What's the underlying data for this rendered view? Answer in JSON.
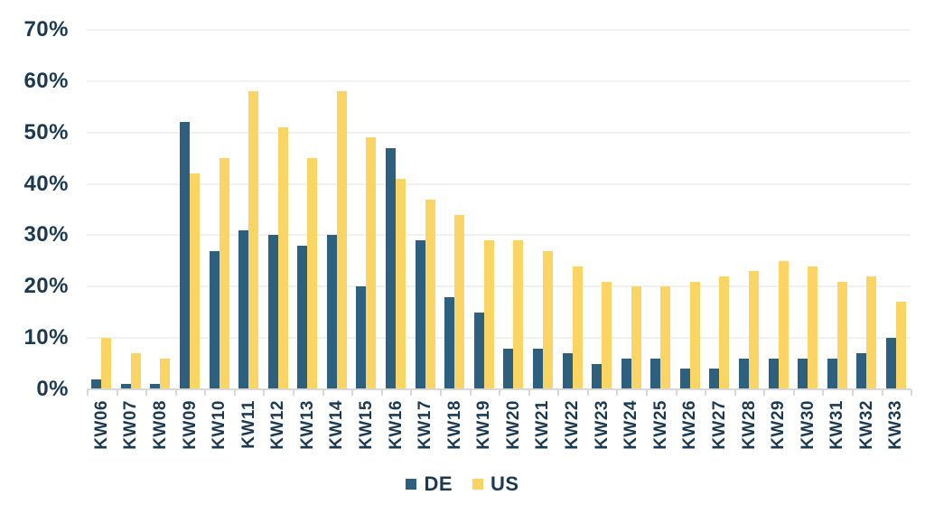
{
  "chart_data": {
    "type": "bar",
    "categories": [
      "KW06",
      "KW07",
      "KW08",
      "KW09",
      "KW10",
      "KW11",
      "KW12",
      "KW13",
      "KW14",
      "KW15",
      "KW16",
      "KW17",
      "KW18",
      "KW19",
      "KW20",
      "KW21",
      "KW22",
      "KW23",
      "KW24",
      "KW25",
      "KW26",
      "KW27",
      "KW28",
      "KW29",
      "KW30",
      "KW31",
      "KW32",
      "KW33"
    ],
    "series": [
      {
        "name": "DE",
        "color": "#2D5F7E",
        "values": [
          2,
          1,
          1,
          52,
          27,
          31,
          30,
          28,
          30,
          20,
          47,
          29,
          18,
          15,
          8,
          8,
          7,
          5,
          6,
          6,
          4,
          4,
          6,
          6,
          6,
          6,
          7,
          10
        ]
      },
      {
        "name": "US",
        "color": "#FBD564",
        "values": [
          10,
          7,
          6,
          42,
          45,
          58,
          51,
          45,
          58,
          49,
          41,
          37,
          34,
          29,
          29,
          27,
          24,
          21,
          20,
          20,
          21,
          22,
          23,
          25,
          24,
          21,
          22,
          17
        ]
      }
    ],
    "title": "",
    "xlabel": "",
    "ylabel": "",
    "ylim": [
      0,
      70
    ],
    "y_tick_step": 10,
    "y_tick_labels": [
      "0%",
      "10%",
      "20%",
      "30%",
      "40%",
      "50%",
      "60%",
      "70%"
    ],
    "grid": true,
    "legend_position": "bottom",
    "legend_entries": [
      "DE",
      "US"
    ]
  },
  "colors": {
    "series_de": "#2D5F7E",
    "series_us": "#FBD564",
    "axis_text": "#1B3A52",
    "gridline": "#F1F1F1",
    "axis_line": "#D8D8D8",
    "background": "#FFFFFF"
  }
}
